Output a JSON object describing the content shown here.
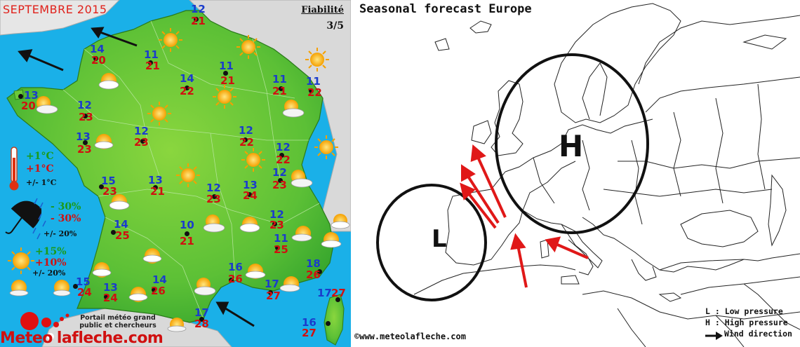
{
  "france": {
    "title": "SEPTEMBRE 2015",
    "reliability_label": "Fiabilité",
    "reliability_value": "3/5",
    "cities": [
      {
        "tmin": "12",
        "tmax": "21"
      },
      {
        "tmin": "14",
        "tmax": "20"
      },
      {
        "tmin": "11",
        "tmax": "21"
      },
      {
        "tmin": "14",
        "tmax": "22"
      },
      {
        "tmin": "11",
        "tmax": "21"
      },
      {
        "tmin": "11",
        "tmax": "21"
      },
      {
        "tmin": "11",
        "tmax": "22"
      },
      {
        "tmin": "13",
        "tmax": "20"
      },
      {
        "tmin": "12",
        "tmax": "23"
      },
      {
        "tmin": "13",
        "tmax": "23"
      },
      {
        "tmin": "12",
        "tmax": "23"
      },
      {
        "tmin": "12",
        "tmax": "22"
      },
      {
        "tmin": "12",
        "tmax": "22"
      },
      {
        "tmin": "12",
        "tmax": "23"
      },
      {
        "tmin": "15",
        "tmax": "23"
      },
      {
        "tmin": "13",
        "tmax": "21"
      },
      {
        "tmin": "12",
        "tmax": "23"
      },
      {
        "tmin": "13",
        "tmax": "24"
      },
      {
        "tmin": "14",
        "tmax": "25"
      },
      {
        "tmin": "10",
        "tmax": "21"
      },
      {
        "tmin": "12",
        "tmax": "23"
      },
      {
        "tmin": "11",
        "tmax": "25"
      },
      {
        "tmin": "16",
        "tmax": "26"
      },
      {
        "tmin": "18",
        "tmax": "26"
      },
      {
        "tmin": "15",
        "tmax": "24"
      },
      {
        "tmin": "13",
        "tmax": "24"
      },
      {
        "tmin": "14",
        "tmax": "26"
      },
      {
        "tmin": "17",
        "tmax": "27"
      },
      {
        "tmin": "17",
        "tmax": "27"
      },
      {
        "tmin": "17",
        "tmax": "28"
      },
      {
        "tmin": "16",
        "tmax": "27"
      }
    ],
    "legend": {
      "temp_green": "+1°C",
      "temp_red": "+1°C",
      "temp_margin": "+/- 1°C",
      "rain_green": "- 30%",
      "rain_red": "- 30%",
      "rain_margin": "+/- 20%",
      "sun_green": "+15%",
      "sun_red": "+10%",
      "sun_margin": "+/- 20%"
    },
    "portal_text_1": "Portail météo grand",
    "portal_text_2": "public et chercheurs",
    "logo_left": "Meteo",
    "logo_right": "lafleche.com",
    "colors": {
      "sea": "#1ab0e8",
      "land": "#6cc83a",
      "tmin": "#1a3ccc",
      "tmax": "#d01010",
      "title": "#e0201a"
    }
  },
  "europe": {
    "title": "Seasonal forecast Europe",
    "high_label": "H",
    "low_label": "L",
    "credit": "©www.meteolafleche.com",
    "legend_low": "L : Low pressure",
    "legend_high": "H : High pressure",
    "legend_wind": "Wind direction"
  }
}
